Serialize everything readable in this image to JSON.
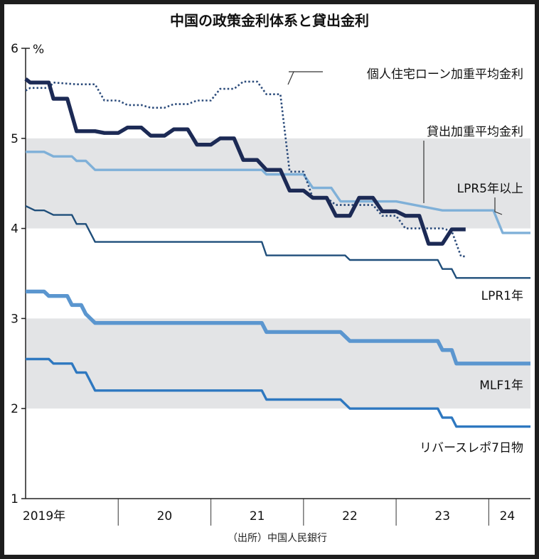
{
  "chart_data": {
    "type": "line",
    "title": "中国の政策金利体系と貸出金利",
    "ylabel_unit": "%",
    "ylim": [
      1,
      6
    ],
    "y_ticks": [
      "1",
      "2",
      "3",
      "4",
      "5",
      "6"
    ],
    "x_range": [
      2019.0,
      2024.45
    ],
    "x_ticks": [
      {
        "label": "2019年",
        "x": 2019.2
      },
      {
        "label": "20",
        "x": 2020.5
      },
      {
        "label": "21",
        "x": 2021.5
      },
      {
        "label": "22",
        "x": 2022.5
      },
      {
        "label": "23",
        "x": 2023.5
      },
      {
        "label": "24",
        "x": 2024.2
      }
    ],
    "x_gridlines": [
      2020,
      2021,
      2022,
      2023,
      2024
    ],
    "shaded_bands": [
      [
        4,
        5
      ],
      [
        2,
        3
      ]
    ],
    "source": "（出所）中国人民銀行",
    "series": [
      {
        "name": "リバースレポ7日物",
        "color": "#2e78c0",
        "style": "solid",
        "weight": "medium",
        "points": [
          [
            2019.0,
            2.55
          ],
          [
            2019.25,
            2.55
          ],
          [
            2019.3,
            2.5
          ],
          [
            2019.5,
            2.5
          ],
          [
            2019.55,
            2.4
          ],
          [
            2019.65,
            2.4
          ],
          [
            2019.75,
            2.2
          ],
          [
            2020.0,
            2.2
          ],
          [
            2021.0,
            2.2
          ],
          [
            2021.55,
            2.2
          ],
          [
            2021.6,
            2.1
          ],
          [
            2022.0,
            2.1
          ],
          [
            2022.4,
            2.1
          ],
          [
            2022.5,
            2.0
          ],
          [
            2023.0,
            2.0
          ],
          [
            2023.45,
            2.0
          ],
          [
            2023.5,
            1.9
          ],
          [
            2023.6,
            1.9
          ],
          [
            2023.65,
            1.8
          ],
          [
            2024.0,
            1.8
          ],
          [
            2024.45,
            1.8
          ]
        ]
      },
      {
        "name": "MLF1年",
        "color": "#5b96cf",
        "style": "solid",
        "weight": "heavy",
        "points": [
          [
            2019.0,
            3.3
          ],
          [
            2019.2,
            3.3
          ],
          [
            2019.25,
            3.25
          ],
          [
            2019.45,
            3.25
          ],
          [
            2019.5,
            3.15
          ],
          [
            2019.6,
            3.15
          ],
          [
            2019.65,
            3.05
          ],
          [
            2019.75,
            2.95
          ],
          [
            2020.0,
            2.95
          ],
          [
            2021.0,
            2.95
          ],
          [
            2021.55,
            2.95
          ],
          [
            2021.6,
            2.85
          ],
          [
            2022.0,
            2.85
          ],
          [
            2022.4,
            2.85
          ],
          [
            2022.5,
            2.75
          ],
          [
            2023.0,
            2.75
          ],
          [
            2023.45,
            2.75
          ],
          [
            2023.5,
            2.65
          ],
          [
            2023.6,
            2.65
          ],
          [
            2023.65,
            2.5
          ],
          [
            2024.0,
            2.5
          ],
          [
            2024.45,
            2.5
          ]
        ]
      },
      {
        "name": "LPR1年",
        "color": "#1f4e7a",
        "style": "solid",
        "weight": "thin",
        "points": [
          [
            2019.0,
            4.25
          ],
          [
            2019.1,
            4.2
          ],
          [
            2019.2,
            4.2
          ],
          [
            2019.3,
            4.15
          ],
          [
            2019.5,
            4.15
          ],
          [
            2019.55,
            4.05
          ],
          [
            2019.65,
            4.05
          ],
          [
            2019.75,
            3.85
          ],
          [
            2020.0,
            3.85
          ],
          [
            2021.0,
            3.85
          ],
          [
            2021.55,
            3.85
          ],
          [
            2021.6,
            3.7
          ],
          [
            2022.0,
            3.7
          ],
          [
            2022.45,
            3.7
          ],
          [
            2022.5,
            3.65
          ],
          [
            2023.0,
            3.65
          ],
          [
            2023.45,
            3.65
          ],
          [
            2023.5,
            3.55
          ],
          [
            2023.6,
            3.55
          ],
          [
            2023.65,
            3.45
          ],
          [
            2024.0,
            3.45
          ],
          [
            2024.45,
            3.45
          ]
        ]
      },
      {
        "name": "LPR5年以上",
        "color": "#7fb0d8",
        "style": "solid",
        "weight": "medium",
        "points": [
          [
            2019.0,
            4.85
          ],
          [
            2019.2,
            4.85
          ],
          [
            2019.3,
            4.8
          ],
          [
            2019.5,
            4.8
          ],
          [
            2019.55,
            4.75
          ],
          [
            2019.65,
            4.75
          ],
          [
            2019.75,
            4.65
          ],
          [
            2020.0,
            4.65
          ],
          [
            2021.0,
            4.65
          ],
          [
            2021.55,
            4.65
          ],
          [
            2021.6,
            4.6
          ],
          [
            2022.0,
            4.6
          ],
          [
            2022.1,
            4.45
          ],
          [
            2022.3,
            4.45
          ],
          [
            2022.4,
            4.3
          ],
          [
            2023.0,
            4.3
          ],
          [
            2023.5,
            4.2
          ],
          [
            2024.0,
            4.2
          ],
          [
            2024.05,
            4.2
          ],
          [
            2024.15,
            3.95
          ],
          [
            2024.45,
            3.95
          ]
        ]
      },
      {
        "name": "貸出加重平均金利",
        "color": "#1c2a55",
        "style": "solid",
        "weight": "heavy",
        "points": [
          [
            2019.0,
            5.66
          ],
          [
            2019.05,
            5.62
          ],
          [
            2019.25,
            5.62
          ],
          [
            2019.3,
            5.44
          ],
          [
            2019.45,
            5.44
          ],
          [
            2019.55,
            5.08
          ],
          [
            2019.75,
            5.08
          ],
          [
            2019.85,
            5.06
          ],
          [
            2020.0,
            5.06
          ],
          [
            2020.1,
            5.12
          ],
          [
            2020.25,
            5.12
          ],
          [
            2020.35,
            5.03
          ],
          [
            2020.5,
            5.03
          ],
          [
            2020.6,
            5.1
          ],
          [
            2020.75,
            5.1
          ],
          [
            2020.85,
            4.93
          ],
          [
            2021.0,
            4.93
          ],
          [
            2021.1,
            5.0
          ],
          [
            2021.25,
            5.0
          ],
          [
            2021.35,
            4.76
          ],
          [
            2021.5,
            4.76
          ],
          [
            2021.6,
            4.65
          ],
          [
            2021.75,
            4.65
          ],
          [
            2021.85,
            4.42
          ],
          [
            2022.0,
            4.42
          ],
          [
            2022.1,
            4.34
          ],
          [
            2022.25,
            4.34
          ],
          [
            2022.35,
            4.14
          ],
          [
            2022.5,
            4.14
          ],
          [
            2022.6,
            4.34
          ],
          [
            2022.75,
            4.34
          ],
          [
            2022.85,
            4.19
          ],
          [
            2023.0,
            4.19
          ],
          [
            2023.1,
            4.14
          ],
          [
            2023.25,
            4.14
          ],
          [
            2023.35,
            3.83
          ],
          [
            2023.5,
            3.83
          ],
          [
            2023.6,
            3.99
          ],
          [
            2023.75,
            3.99
          ]
        ]
      },
      {
        "name": "個人住宅ローン加重平均金利",
        "color": "#2a4a7a",
        "style": "dotted",
        "weight": "medium",
        "points": [
          [
            2019.0,
            5.53
          ],
          [
            2019.05,
            5.56
          ],
          [
            2019.25,
            5.56
          ],
          [
            2019.3,
            5.62
          ],
          [
            2019.55,
            5.6
          ],
          [
            2019.75,
            5.6
          ],
          [
            2019.85,
            5.42
          ],
          [
            2020.0,
            5.42
          ],
          [
            2020.1,
            5.37
          ],
          [
            2020.25,
            5.37
          ],
          [
            2020.35,
            5.34
          ],
          [
            2020.5,
            5.34
          ],
          [
            2020.6,
            5.38
          ],
          [
            2020.75,
            5.38
          ],
          [
            2020.85,
            5.42
          ],
          [
            2021.0,
            5.42
          ],
          [
            2021.1,
            5.55
          ],
          [
            2021.25,
            5.55
          ],
          [
            2021.35,
            5.63
          ],
          [
            2021.5,
            5.63
          ],
          [
            2021.6,
            5.49
          ],
          [
            2021.75,
            5.49
          ],
          [
            2021.85,
            4.63
          ],
          [
            2022.0,
            4.63
          ],
          [
            2022.1,
            4.34
          ],
          [
            2022.25,
            4.34
          ],
          [
            2022.35,
            4.26
          ],
          [
            2022.5,
            4.26
          ],
          [
            2022.6,
            4.26
          ],
          [
            2022.75,
            4.26
          ],
          [
            2022.85,
            4.14
          ],
          [
            2023.0,
            4.14
          ],
          [
            2023.1,
            4.0
          ],
          [
            2023.25,
            4.0
          ],
          [
            2023.35,
            4.0
          ],
          [
            2023.5,
            4.0
          ],
          [
            2023.6,
            3.97
          ],
          [
            2023.7,
            3.69
          ],
          [
            2023.75,
            3.69
          ]
        ]
      }
    ],
    "labels": [
      {
        "series": "個人住宅ローン加重平均金利",
        "text": "個人住宅ローン加重平均金利"
      },
      {
        "series": "貸出加重平均金利",
        "text": "貸出加重平均金利"
      },
      {
        "series": "LPR5年以上",
        "text": "LPR5年以上"
      },
      {
        "series": "LPR1年",
        "text": "LPR1年"
      },
      {
        "series": "MLF1年",
        "text": "MLF1年"
      },
      {
        "series": "リバースレポ7日物",
        "text": "リバースレポ7日物"
      }
    ]
  }
}
